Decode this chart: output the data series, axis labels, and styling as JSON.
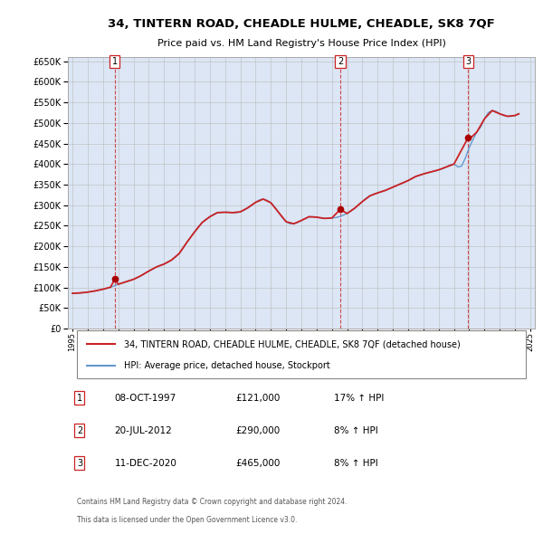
{
  "title": "34, TINTERN ROAD, CHEADLE HULME, CHEADLE, SK8 7QF",
  "subtitle": "Price paid vs. HM Land Registry's House Price Index (HPI)",
  "plot_bg_color": "#dce6f5",
  "red_line_label": "34, TINTERN ROAD, CHEADLE HULME, CHEADLE, SK8 7QF (detached house)",
  "blue_line_label": "HPI: Average price, detached house, Stockport",
  "footer1": "Contains HM Land Registry data © Crown copyright and database right 2024.",
  "footer2": "This data is licensed under the Open Government Licence v3.0.",
  "ylim": [
    0,
    660000
  ],
  "yticks": [
    0,
    50000,
    100000,
    150000,
    200000,
    250000,
    300000,
    350000,
    400000,
    450000,
    500000,
    550000,
    600000,
    650000
  ],
  "xlim_start": 1994.7,
  "xlim_end": 2025.3,
  "sales": [
    {
      "date_num": 1997.77,
      "price": 121000,
      "label": "1"
    },
    {
      "date_num": 2012.55,
      "price": 290000,
      "label": "2"
    },
    {
      "date_num": 2020.94,
      "price": 465000,
      "label": "3"
    }
  ],
  "sale_rows": [
    {
      "num": "1",
      "date": "08-OCT-1997",
      "price": "£121,000",
      "pct": "17% ↑ HPI"
    },
    {
      "num": "2",
      "date": "20-JUL-2012",
      "price": "£290,000",
      "pct": "8% ↑ HPI"
    },
    {
      "num": "3",
      "date": "11-DEC-2020",
      "price": "£465,000",
      "pct": "8% ↑ HPI"
    }
  ],
  "hpi_data": {
    "years": [
      1995.0,
      1995.25,
      1995.5,
      1995.75,
      1996.0,
      1996.25,
      1996.5,
      1996.75,
      1997.0,
      1997.25,
      1997.5,
      1997.75,
      1998.0,
      1998.25,
      1998.5,
      1998.75,
      1999.0,
      1999.25,
      1999.5,
      1999.75,
      2000.0,
      2000.25,
      2000.5,
      2000.75,
      2001.0,
      2001.25,
      2001.5,
      2001.75,
      2002.0,
      2002.25,
      2002.5,
      2002.75,
      2003.0,
      2003.25,
      2003.5,
      2003.75,
      2004.0,
      2004.25,
      2004.5,
      2004.75,
      2005.0,
      2005.25,
      2005.5,
      2005.75,
      2006.0,
      2006.25,
      2006.5,
      2006.75,
      2007.0,
      2007.25,
      2007.5,
      2007.75,
      2008.0,
      2008.25,
      2008.5,
      2008.75,
      2009.0,
      2009.25,
      2009.5,
      2009.75,
      2010.0,
      2010.25,
      2010.5,
      2010.75,
      2011.0,
      2011.25,
      2011.5,
      2011.75,
      2012.0,
      2012.25,
      2012.5,
      2012.75,
      2013.0,
      2013.25,
      2013.5,
      2013.75,
      2014.0,
      2014.25,
      2014.5,
      2014.75,
      2015.0,
      2015.25,
      2015.5,
      2015.75,
      2016.0,
      2016.25,
      2016.5,
      2016.75,
      2017.0,
      2017.25,
      2017.5,
      2017.75,
      2018.0,
      2018.25,
      2018.5,
      2018.75,
      2019.0,
      2019.25,
      2019.5,
      2019.75,
      2020.0,
      2020.25,
      2020.5,
      2020.75,
      2021.0,
      2021.25,
      2021.5,
      2021.75,
      2022.0,
      2022.25,
      2022.5,
      2022.75,
      2023.0,
      2023.25,
      2023.5,
      2023.75,
      2024.0,
      2024.25
    ],
    "values": [
      86000,
      86500,
      87000,
      87500,
      89000,
      90000,
      92000,
      94000,
      96000,
      98000,
      101000,
      104000,
      108000,
      111000,
      114000,
      117000,
      120000,
      124000,
      129000,
      135000,
      140000,
      145000,
      150000,
      154000,
      157000,
      162000,
      167000,
      174000,
      183000,
      196000,
      210000,
      223000,
      235000,
      248000,
      258000,
      266000,
      272000,
      278000,
      282000,
      283000,
      283000,
      283000,
      282000,
      282000,
      284000,
      288000,
      294000,
      300000,
      307000,
      313000,
      315000,
      312000,
      306000,
      296000,
      283000,
      270000,
      260000,
      255000,
      255000,
      258000,
      263000,
      268000,
      272000,
      272000,
      271000,
      269000,
      268000,
      268000,
      269000,
      270000,
      272000,
      276000,
      280000,
      286000,
      293000,
      301000,
      309000,
      317000,
      323000,
      327000,
      330000,
      333000,
      336000,
      340000,
      344000,
      348000,
      352000,
      355000,
      360000,
      365000,
      370000,
      373000,
      376000,
      379000,
      381000,
      383000,
      386000,
      389000,
      393000,
      398000,
      400000,
      393000,
      395000,
      415000,
      440000,
      460000,
      478000,
      490000,
      510000,
      525000,
      530000,
      528000,
      522000,
      518000,
      516000,
      516000,
      518000,
      522000
    ]
  },
  "red_line_data": {
    "years": [
      1995.0,
      1995.5,
      1996.0,
      1996.5,
      1997.0,
      1997.5,
      1997.77,
      1998.0,
      1998.5,
      1999.0,
      1999.5,
      2000.0,
      2000.5,
      2001.0,
      2001.5,
      2002.0,
      2002.5,
      2003.0,
      2003.5,
      2004.0,
      2004.5,
      2005.0,
      2005.5,
      2006.0,
      2006.5,
      2007.0,
      2007.5,
      2008.0,
      2008.5,
      2009.0,
      2009.5,
      2010.0,
      2010.5,
      2011.0,
      2011.5,
      2012.0,
      2012.55,
      2013.0,
      2013.5,
      2014.0,
      2014.5,
      2015.0,
      2015.5,
      2016.0,
      2016.5,
      2017.0,
      2017.5,
      2018.0,
      2018.5,
      2019.0,
      2019.5,
      2020.0,
      2020.94,
      2021.0,
      2021.5,
      2022.0,
      2022.5,
      2023.0,
      2023.5,
      2024.0,
      2024.25
    ],
    "values": [
      86000,
      87000,
      89000,
      92000,
      96000,
      101000,
      121000,
      108000,
      114000,
      120000,
      129000,
      140000,
      150000,
      157000,
      167000,
      183000,
      210000,
      235000,
      258000,
      272000,
      282000,
      283000,
      282000,
      284000,
      294000,
      307000,
      315000,
      306000,
      283000,
      260000,
      255000,
      263000,
      272000,
      271000,
      268000,
      269000,
      290000,
      280000,
      293000,
      309000,
      323000,
      330000,
      336000,
      344000,
      352000,
      360000,
      370000,
      376000,
      381000,
      386000,
      393000,
      400000,
      465000,
      460000,
      478000,
      510000,
      530000,
      522000,
      516000,
      518000,
      522000
    ]
  },
  "dashed_vlines": [
    1997.77,
    2012.55,
    2020.94
  ]
}
